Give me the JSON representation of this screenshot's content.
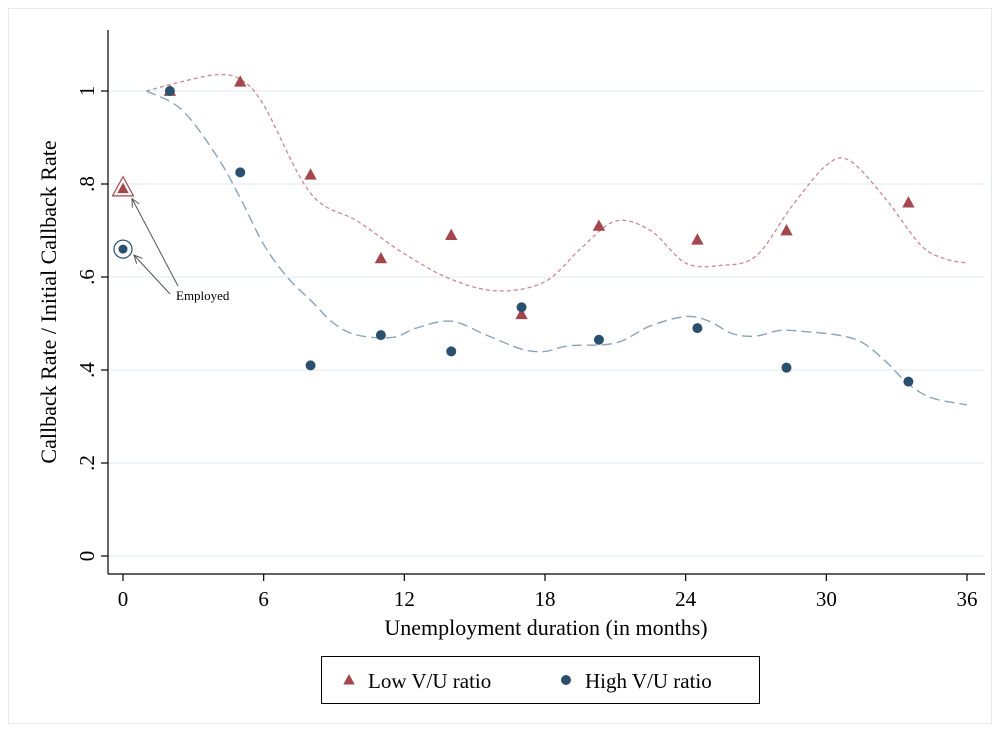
{
  "chart_data": {
    "type": "scatter",
    "xlabel": "Unemployment duration (in months)",
    "ylabel": "Callback Rate / Initial Callback Rate",
    "xlim": [
      0,
      36
    ],
    "ylim": [
      0,
      1
    ],
    "x_ticks": [
      "0",
      "6",
      "12",
      "18",
      "24",
      "30",
      "36"
    ],
    "y_ticks": [
      "0",
      ".2",
      ".4",
      ".6",
      ".8",
      "1"
    ],
    "grid": "horizontal",
    "legend_position": "bottom",
    "annotation": "Employed",
    "series": [
      {
        "name": "Low V/U ratio",
        "marker": "triangle",
        "color": "#a3474d",
        "employed_point": {
          "x": 0,
          "y": 0.79
        },
        "points": [
          {
            "x": 2,
            "y": 1.0
          },
          {
            "x": 5,
            "y": 1.02
          },
          {
            "x": 8,
            "y": 0.82
          },
          {
            "x": 11,
            "y": 0.64
          },
          {
            "x": 14,
            "y": 0.69
          },
          {
            "x": 17,
            "y": 0.52
          },
          {
            "x": 20.3,
            "y": 0.71
          },
          {
            "x": 24.5,
            "y": 0.68
          },
          {
            "x": 28.3,
            "y": 0.7
          },
          {
            "x": 33.5,
            "y": 0.76
          }
        ],
        "smooth": [
          {
            "x": 1,
            "y": 1.0
          },
          {
            "x": 2.5,
            "y": 1.02
          },
          {
            "x": 4,
            "y": 1.035
          },
          {
            "x": 5,
            "y": 1.025
          },
          {
            "x": 6,
            "y": 0.97
          },
          {
            "x": 8,
            "y": 0.78
          },
          {
            "x": 10,
            "y": 0.72
          },
          {
            "x": 12,
            "y": 0.65
          },
          {
            "x": 14,
            "y": 0.595
          },
          {
            "x": 16,
            "y": 0.57
          },
          {
            "x": 18,
            "y": 0.59
          },
          {
            "x": 19.5,
            "y": 0.66
          },
          {
            "x": 21,
            "y": 0.72
          },
          {
            "x": 22.5,
            "y": 0.7
          },
          {
            "x": 24,
            "y": 0.63
          },
          {
            "x": 25.5,
            "y": 0.625
          },
          {
            "x": 27,
            "y": 0.645
          },
          {
            "x": 28.5,
            "y": 0.75
          },
          {
            "x": 30,
            "y": 0.84
          },
          {
            "x": 31,
            "y": 0.85
          },
          {
            "x": 32.5,
            "y": 0.77
          },
          {
            "x": 34,
            "y": 0.67
          },
          {
            "x": 35,
            "y": 0.64
          },
          {
            "x": 36,
            "y": 0.63
          }
        ]
      },
      {
        "name": "High V/U ratio",
        "marker": "circle",
        "color": "#2b506f",
        "employed_point": {
          "x": 0,
          "y": 0.66
        },
        "points": [
          {
            "x": 2,
            "y": 1.0
          },
          {
            "x": 5,
            "y": 0.825
          },
          {
            "x": 8,
            "y": 0.41
          },
          {
            "x": 11,
            "y": 0.475
          },
          {
            "x": 14,
            "y": 0.44
          },
          {
            "x": 17,
            "y": 0.535
          },
          {
            "x": 20.3,
            "y": 0.465
          },
          {
            "x": 24.5,
            "y": 0.49
          },
          {
            "x": 28.3,
            "y": 0.405
          },
          {
            "x": 33.5,
            "y": 0.375
          }
        ],
        "smooth": [
          {
            "x": 1,
            "y": 1.0
          },
          {
            "x": 2.5,
            "y": 0.96
          },
          {
            "x": 4,
            "y": 0.86
          },
          {
            "x": 5,
            "y": 0.77
          },
          {
            "x": 6,
            "y": 0.67
          },
          {
            "x": 7,
            "y": 0.6
          },
          {
            "x": 8,
            "y": 0.55
          },
          {
            "x": 9,
            "y": 0.5
          },
          {
            "x": 10,
            "y": 0.475
          },
          {
            "x": 11.5,
            "y": 0.47
          },
          {
            "x": 12.5,
            "y": 0.49
          },
          {
            "x": 14,
            "y": 0.505
          },
          {
            "x": 15.5,
            "y": 0.475
          },
          {
            "x": 17,
            "y": 0.445
          },
          {
            "x": 18,
            "y": 0.44
          },
          {
            "x": 19,
            "y": 0.452
          },
          {
            "x": 21,
            "y": 0.458
          },
          {
            "x": 22.5,
            "y": 0.495
          },
          {
            "x": 24,
            "y": 0.515
          },
          {
            "x": 25,
            "y": 0.505
          },
          {
            "x": 26,
            "y": 0.478
          },
          {
            "x": 27,
            "y": 0.473
          },
          {
            "x": 28,
            "y": 0.485
          },
          {
            "x": 29,
            "y": 0.483
          },
          {
            "x": 30.5,
            "y": 0.475
          },
          {
            "x": 31.5,
            "y": 0.46
          },
          {
            "x": 32.5,
            "y": 0.42
          },
          {
            "x": 33.5,
            "y": 0.37
          },
          {
            "x": 34.5,
            "y": 0.34
          },
          {
            "x": 36,
            "y": 0.325
          }
        ]
      }
    ]
  }
}
